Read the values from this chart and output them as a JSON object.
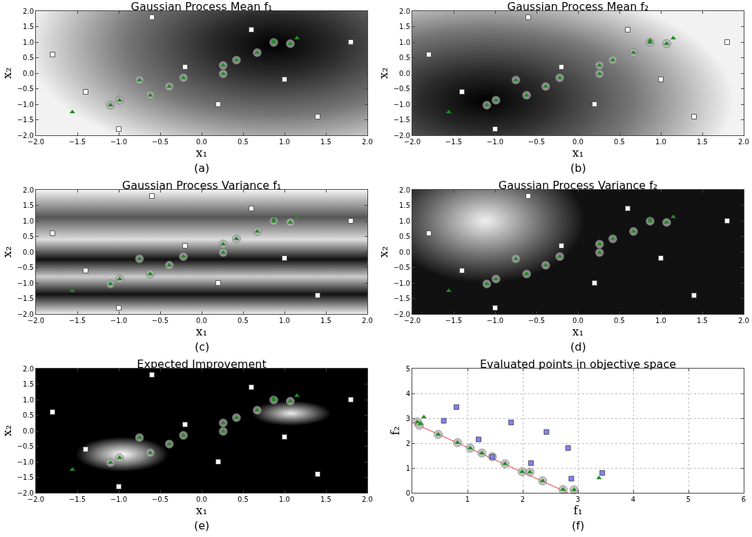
{
  "chart_data": [
    {
      "type": "scatter",
      "title": "Gaussian Process Mean f₁",
      "xlabel": "x₁",
      "ylabel": "x₂",
      "annotations": [
        "(a)"
      ],
      "xlim": [
        -2,
        2
      ],
      "ylim": [
        -2,
        2
      ],
      "xticks": [
        {
          "value": -2,
          "label": "−2.0"
        },
        {
          "value": -1.5,
          "label": "−1.5"
        },
        {
          "value": -1,
          "label": "−1.0"
        },
        {
          "value": -0.5,
          "label": "−0.5"
        },
        {
          "value": 0,
          "label": "0.0"
        },
        {
          "value": 0.5,
          "label": "0.5"
        },
        {
          "value": 1,
          "label": "1.0"
        },
        {
          "value": 1.5,
          "label": "1.5"
        },
        {
          "value": 2,
          "label": "2.0"
        }
      ],
      "yticks": [
        {
          "value": -2,
          "label": "−2.0"
        },
        {
          "value": -1.5,
          "label": "−1.5"
        },
        {
          "value": -1,
          "label": "−1.0"
        },
        {
          "value": -0.5,
          "label": "−0.5"
        },
        {
          "value": 0,
          "label": "0.0"
        },
        {
          "value": 0.5,
          "label": "0.5"
        },
        {
          "value": 1,
          "label": "1.0"
        },
        {
          "value": 1.5,
          "label": "1.5"
        },
        {
          "value": 2,
          "label": "2.0"
        }
      ],
      "series": [
        {
          "color": "#ffffff",
          "marker": "square",
          "x": [
            -1.8,
            -1.4,
            -1.0,
            -0.6,
            -0.2,
            0.2,
            0.6,
            1.0,
            1.4,
            1.8
          ],
          "values": [
            0.6,
            -0.6,
            -1.8,
            1.8,
            0.2,
            -1.0,
            1.4,
            -0.2,
            -1.4,
            1.0
          ]
        },
        {
          "color": "#b0b0b0",
          "marker": "circle",
          "x": [
            -1.1,
            -0.99,
            -0.75,
            -0.62,
            -0.39,
            -0.22,
            0.26,
            0.26,
            0.42,
            0.67,
            0.87,
            1.07
          ],
          "values": [
            -1.03,
            -0.87,
            -0.22,
            -0.71,
            -0.43,
            -0.15,
            0.25,
            -0.02,
            0.42,
            0.66,
            0.99,
            0.95
          ]
        },
        {
          "color": "#228b22",
          "marker": "triangle",
          "x": [
            -1.56,
            -1.1,
            -0.99,
            -0.75,
            -0.62,
            -0.39,
            -0.22,
            0.26,
            0.26,
            0.42,
            0.67,
            0.87,
            0.87,
            1.07,
            1.15
          ],
          "values": [
            -1.25,
            -1.03,
            -0.87,
            -0.22,
            -0.71,
            -0.43,
            -0.15,
            0.25,
            -0.02,
            0.42,
            0.66,
            0.99,
            1.05,
            0.95,
            1.13
          ]
        }
      ]
    },
    {
      "type": "scatter",
      "title": "Gaussian Process Mean f₂",
      "xlabel": "x₁",
      "ylabel": "x₂",
      "annotations": [
        "(b)"
      ],
      "xlim": [
        -2,
        2
      ],
      "ylim": [
        -2,
        2
      ],
      "xticks": [
        {
          "value": -2,
          "label": "−2.0"
        },
        {
          "value": -1.5,
          "label": "−1.5"
        },
        {
          "value": -1,
          "label": "−1.0"
        },
        {
          "value": -0.5,
          "label": "−0.5"
        },
        {
          "value": 0,
          "label": "0.0"
        },
        {
          "value": 0.5,
          "label": "0.5"
        },
        {
          "value": 1,
          "label": "1.0"
        },
        {
          "value": 1.5,
          "label": "1.5"
        },
        {
          "value": 2,
          "label": "2.0"
        }
      ],
      "yticks": [
        {
          "value": -2,
          "label": "−2.0"
        },
        {
          "value": -1.5,
          "label": "−1.5"
        },
        {
          "value": -1,
          "label": "−1.0"
        },
        {
          "value": -0.5,
          "label": "−0.5"
        },
        {
          "value": 0,
          "label": "0.0"
        },
        {
          "value": 0.5,
          "label": "0.5"
        },
        {
          "value": 1,
          "label": "1.0"
        },
        {
          "value": 1.5,
          "label": "1.5"
        },
        {
          "value": 2,
          "label": "2.0"
        }
      ],
      "series": [
        {
          "color": "#ffffff",
          "marker": "square",
          "x": [
            -1.8,
            -1.4,
            -1.0,
            -0.6,
            -0.2,
            0.2,
            0.6,
            1.0,
            1.4,
            1.8
          ],
          "values": [
            0.6,
            -0.6,
            -1.8,
            1.8,
            0.2,
            -1.0,
            1.4,
            -0.2,
            -1.4,
            1.0
          ]
        },
        {
          "color": "#b0b0b0",
          "marker": "circle",
          "x": [
            -1.1,
            -0.99,
            -0.75,
            -0.62,
            -0.39,
            -0.22,
            0.26,
            0.26,
            0.42,
            0.67,
            0.87,
            1.07
          ],
          "values": [
            -1.03,
            -0.87,
            -0.22,
            -0.71,
            -0.43,
            -0.15,
            0.25,
            -0.02,
            0.42,
            0.66,
            0.99,
            0.95
          ]
        },
        {
          "color": "#228b22",
          "marker": "triangle",
          "x": [
            -1.56,
            -1.1,
            -0.99,
            -0.75,
            -0.62,
            -0.39,
            -0.22,
            0.26,
            0.26,
            0.42,
            0.67,
            0.87,
            0.87,
            1.07,
            1.15
          ],
          "values": [
            -1.25,
            -1.03,
            -0.87,
            -0.22,
            -0.71,
            -0.43,
            -0.15,
            0.25,
            -0.02,
            0.42,
            0.66,
            0.99,
            1.05,
            0.95,
            1.13
          ]
        }
      ]
    },
    {
      "type": "scatter",
      "title": "Gaussian Process Variance f₁",
      "xlabel": "x₁",
      "ylabel": "x₂",
      "annotations": [
        "(c)"
      ],
      "xlim": [
        -2,
        2
      ],
      "ylim": [
        -2,
        2
      ],
      "xticks": [
        {
          "value": -2,
          "label": "−2.0"
        },
        {
          "value": -1.5,
          "label": "−1.5"
        },
        {
          "value": -1,
          "label": "−1.0"
        },
        {
          "value": -0.5,
          "label": "−0.5"
        },
        {
          "value": 0,
          "label": "0.0"
        },
        {
          "value": 0.5,
          "label": "0.5"
        },
        {
          "value": 1,
          "label": "1.0"
        },
        {
          "value": 1.5,
          "label": "1.5"
        },
        {
          "value": 2,
          "label": "2.0"
        }
      ],
      "yticks": [
        {
          "value": -2,
          "label": "−2.0"
        },
        {
          "value": -1.5,
          "label": "−1.5"
        },
        {
          "value": -1,
          "label": "−1.0"
        },
        {
          "value": -0.5,
          "label": "−0.5"
        },
        {
          "value": 0,
          "label": "0.0"
        },
        {
          "value": 0.5,
          "label": "0.5"
        },
        {
          "value": 1,
          "label": "1.0"
        },
        {
          "value": 1.5,
          "label": "1.5"
        },
        {
          "value": 2,
          "label": "2.0"
        }
      ],
      "series": [
        {
          "color": "#ffffff",
          "marker": "square",
          "x": [
            -1.8,
            -1.4,
            -1.0,
            -0.6,
            -0.2,
            0.2,
            0.6,
            1.0,
            1.4,
            1.8
          ],
          "values": [
            0.6,
            -0.6,
            -1.8,
            1.8,
            0.2,
            -1.0,
            1.4,
            -0.2,
            -1.4,
            1.0
          ]
        },
        {
          "color": "#b0b0b0",
          "marker": "circle",
          "x": [
            -1.1,
            -0.99,
            -0.75,
            -0.62,
            -0.39,
            -0.22,
            0.26,
            0.26,
            0.42,
            0.67,
            0.87,
            1.07
          ],
          "values": [
            -1.03,
            -0.87,
            -0.22,
            -0.71,
            -0.43,
            -0.15,
            0.25,
            -0.02,
            0.42,
            0.66,
            0.99,
            0.95
          ]
        },
        {
          "color": "#228b22",
          "marker": "triangle",
          "x": [
            -1.56,
            -1.1,
            -0.99,
            -0.75,
            -0.62,
            -0.39,
            -0.22,
            0.26,
            0.26,
            0.42,
            0.67,
            0.87,
            0.87,
            1.07,
            1.15
          ],
          "values": [
            -1.25,
            -1.03,
            -0.87,
            -0.22,
            -0.71,
            -0.43,
            -0.15,
            0.25,
            -0.02,
            0.42,
            0.66,
            0.99,
            1.05,
            0.95,
            1.13
          ]
        }
      ]
    },
    {
      "type": "scatter",
      "title": "Gaussian Process Variance f₂",
      "xlabel": "x₁",
      "ylabel": "x₂",
      "annotations": [
        "(d)"
      ],
      "xlim": [
        -2,
        2
      ],
      "ylim": [
        -2,
        2
      ],
      "xticks": [
        {
          "value": -2,
          "label": "−2.0"
        },
        {
          "value": -1.5,
          "label": "−1.5"
        },
        {
          "value": -1,
          "label": "−1.0"
        },
        {
          "value": -0.5,
          "label": "−0.5"
        },
        {
          "value": 0,
          "label": "0.0"
        },
        {
          "value": 0.5,
          "label": "0.5"
        },
        {
          "value": 1,
          "label": "1.0"
        },
        {
          "value": 1.5,
          "label": "1.5"
        },
        {
          "value": 2,
          "label": "2.0"
        }
      ],
      "yticks": [
        {
          "value": -2,
          "label": "−2.0"
        },
        {
          "value": -1.5,
          "label": "−1.5"
        },
        {
          "value": -1,
          "label": "−1.0"
        },
        {
          "value": -0.5,
          "label": "−0.5"
        },
        {
          "value": 0,
          "label": "0.0"
        },
        {
          "value": 0.5,
          "label": "0.5"
        },
        {
          "value": 1,
          "label": "1.0"
        },
        {
          "value": 1.5,
          "label": "1.5"
        },
        {
          "value": 2,
          "label": "2.0"
        }
      ],
      "series": [
        {
          "color": "#ffffff",
          "marker": "square",
          "x": [
            -1.8,
            -1.4,
            -1.0,
            -0.6,
            -0.2,
            0.2,
            0.6,
            1.0,
            1.4,
            1.8
          ],
          "values": [
            0.6,
            -0.6,
            -1.8,
            1.8,
            0.2,
            -1.0,
            1.4,
            -0.2,
            -1.4,
            1.0
          ]
        },
        {
          "color": "#b0b0b0",
          "marker": "circle",
          "x": [
            -1.1,
            -0.99,
            -0.75,
            -0.62,
            -0.39,
            -0.22,
            0.26,
            0.26,
            0.42,
            0.67,
            0.87,
            1.07
          ],
          "values": [
            -1.03,
            -0.87,
            -0.22,
            -0.71,
            -0.43,
            -0.15,
            0.25,
            -0.02,
            0.42,
            0.66,
            0.99,
            0.95
          ]
        },
        {
          "color": "#228b22",
          "marker": "triangle",
          "x": [
            -1.56,
            -1.1,
            -0.99,
            -0.75,
            -0.62,
            -0.39,
            -0.22,
            0.26,
            0.26,
            0.42,
            0.67,
            0.87,
            0.87,
            1.07,
            1.15
          ],
          "values": [
            -1.25,
            -1.03,
            -0.87,
            -0.22,
            -0.71,
            -0.43,
            -0.15,
            0.25,
            -0.02,
            0.42,
            0.66,
            0.99,
            1.05,
            0.95,
            1.13
          ]
        }
      ]
    },
    {
      "type": "scatter",
      "title": "Expected Improvement",
      "xlabel": "x₁",
      "ylabel": "x₂",
      "annotations": [
        "(e)"
      ],
      "xlim": [
        -2,
        2
      ],
      "ylim": [
        -2,
        2
      ],
      "xticks": [
        {
          "value": -2,
          "label": "−2.0"
        },
        {
          "value": -1.5,
          "label": "−1.5"
        },
        {
          "value": -1,
          "label": "−1.0"
        },
        {
          "value": -0.5,
          "label": "−0.5"
        },
        {
          "value": 0,
          "label": "0.0"
        },
        {
          "value": 0.5,
          "label": "0.5"
        },
        {
          "value": 1,
          "label": "1.0"
        },
        {
          "value": 1.5,
          "label": "1.5"
        },
        {
          "value": 2,
          "label": "2.0"
        }
      ],
      "yticks": [
        {
          "value": -2,
          "label": "−2.0"
        },
        {
          "value": -1.5,
          "label": "−1.5"
        },
        {
          "value": -1,
          "label": "−1.0"
        },
        {
          "value": -0.5,
          "label": "−0.5"
        },
        {
          "value": 0,
          "label": "0.0"
        },
        {
          "value": 0.5,
          "label": "0.5"
        },
        {
          "value": 1,
          "label": "1.0"
        },
        {
          "value": 1.5,
          "label": "1.5"
        },
        {
          "value": 2,
          "label": "2.0"
        }
      ],
      "series": [
        {
          "color": "#ffffff",
          "marker": "square",
          "x": [
            -1.8,
            -1.4,
            -1.0,
            -0.6,
            -0.2,
            0.2,
            0.6,
            1.0,
            1.4,
            1.8
          ],
          "values": [
            0.6,
            -0.6,
            -1.8,
            1.8,
            0.2,
            -1.0,
            1.4,
            -0.2,
            -1.4,
            1.0
          ]
        },
        {
          "color": "#b0b0b0",
          "marker": "circle",
          "x": [
            -1.1,
            -0.99,
            -0.75,
            -0.62,
            -0.39,
            -0.22,
            0.26,
            0.26,
            0.42,
            0.67,
            0.87,
            1.07
          ],
          "values": [
            -1.03,
            -0.87,
            -0.22,
            -0.71,
            -0.43,
            -0.15,
            0.25,
            -0.02,
            0.42,
            0.66,
            0.99,
            0.95
          ]
        },
        {
          "color": "#228b22",
          "marker": "triangle",
          "x": [
            -1.56,
            -1.1,
            -0.99,
            -0.75,
            -0.62,
            -0.39,
            -0.22,
            0.26,
            0.26,
            0.42,
            0.67,
            0.87,
            0.87,
            1.07,
            1.15
          ],
          "values": [
            -1.25,
            -1.03,
            -0.87,
            -0.22,
            -0.71,
            -0.43,
            -0.15,
            0.25,
            -0.02,
            0.42,
            0.66,
            0.99,
            1.05,
            0.95,
            1.13
          ]
        }
      ]
    },
    {
      "type": "scatter",
      "title": "Evaluated points in objective space",
      "xlabel": "f₁",
      "ylabel": "f₂",
      "annotations": [
        "(f)"
      ],
      "xlim": [
        0,
        6
      ],
      "ylim": [
        0,
        5
      ],
      "xticks": [
        0,
        1,
        2,
        3,
        4,
        5,
        6
      ],
      "yticks": [
        0,
        1,
        2,
        3,
        4,
        5
      ],
      "grid": true,
      "series": [
        {
          "type": "line",
          "color": "#e83030",
          "marker": "none",
          "line_style": "solid",
          "x": [
            0,
            2.82
          ],
          "values": [
            2.83,
            0
          ]
        },
        {
          "color": "#b0b0b0",
          "marker": "circle",
          "x": [
            0.09,
            0.13,
            0.47,
            0.82,
            1.05,
            1.26,
            1.45,
            1.68,
            1.99,
            2.13,
            2.36,
            2.73,
            2.93
          ],
          "values": [
            2.85,
            2.72,
            2.35,
            2.02,
            1.8,
            1.6,
            1.45,
            1.17,
            0.85,
            0.83,
            0.48,
            0.13,
            0.12
          ]
        },
        {
          "color": "#8080f8",
          "marker": "square",
          "x": [
            0.57,
            0.8,
            1.2,
            1.45,
            1.79,
            2.15,
            2.43,
            2.82,
            2.88,
            3.44
          ],
          "values": [
            2.9,
            3.45,
            2.15,
            1.45,
            2.83,
            1.2,
            2.45,
            1.8,
            0.57,
            0.8
          ]
        },
        {
          "color": "#228b22",
          "marker": "triangle",
          "x": [
            0.09,
            0.15,
            0.21,
            0.47,
            0.82,
            1.05,
            1.26,
            1.68,
            1.99,
            2.13,
            2.36,
            2.73,
            2.93,
            3.38
          ],
          "values": [
            2.85,
            2.78,
            3.05,
            2.35,
            2.02,
            1.8,
            1.6,
            1.17,
            0.85,
            0.83,
            0.48,
            0.13,
            0.12,
            0.6
          ]
        }
      ]
    }
  ]
}
